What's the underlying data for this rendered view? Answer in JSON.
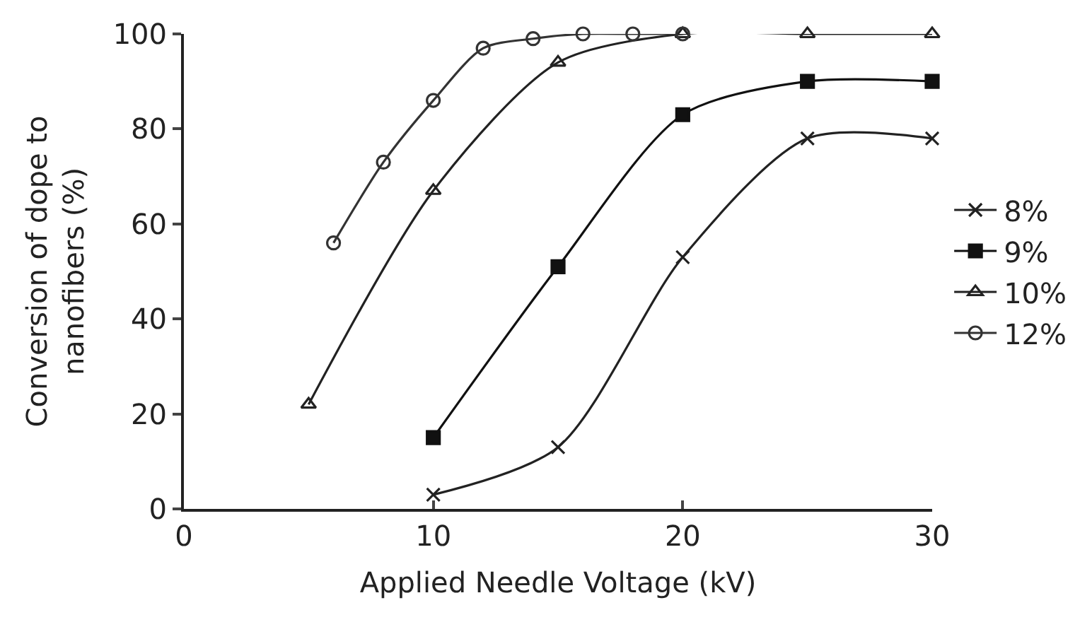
{
  "chart_data": {
    "type": "line",
    "xlabel": "Applied Needle Voltage (kV)",
    "ylabel": "Conversion of dope to\nnanofibers (%)",
    "xlim": [
      0,
      30
    ],
    "xticks": [
      0,
      10,
      20,
      30
    ],
    "ylim": [
      0,
      100
    ],
    "yticks": [
      0,
      20,
      40,
      60,
      80,
      100
    ],
    "legend": "right",
    "line_style": "solid",
    "series": [
      {
        "name": "8%",
        "color": "#222222",
        "marker": "cross",
        "x": [
          10,
          15,
          20,
          25,
          30
        ],
        "values": [
          3,
          13,
          53,
          78,
          78
        ]
      },
      {
        "name": "9%",
        "color": "#111111",
        "marker": "square",
        "x": [
          10,
          15,
          20,
          25,
          30
        ],
        "values": [
          15,
          51,
          83,
          90,
          90
        ]
      },
      {
        "name": "10%",
        "color": "#222222",
        "marker": "triangle",
        "x": [
          5,
          10,
          15,
          20,
          25,
          30
        ],
        "values": [
          22,
          67,
          94,
          100,
          100,
          100
        ]
      },
      {
        "name": "12%",
        "color": "#333333",
        "marker": "circle",
        "x": [
          6,
          8,
          10,
          12,
          14,
          16,
          18,
          20
        ],
        "values": [
          56,
          73,
          86,
          97,
          99,
          100,
          100,
          100
        ]
      }
    ]
  }
}
